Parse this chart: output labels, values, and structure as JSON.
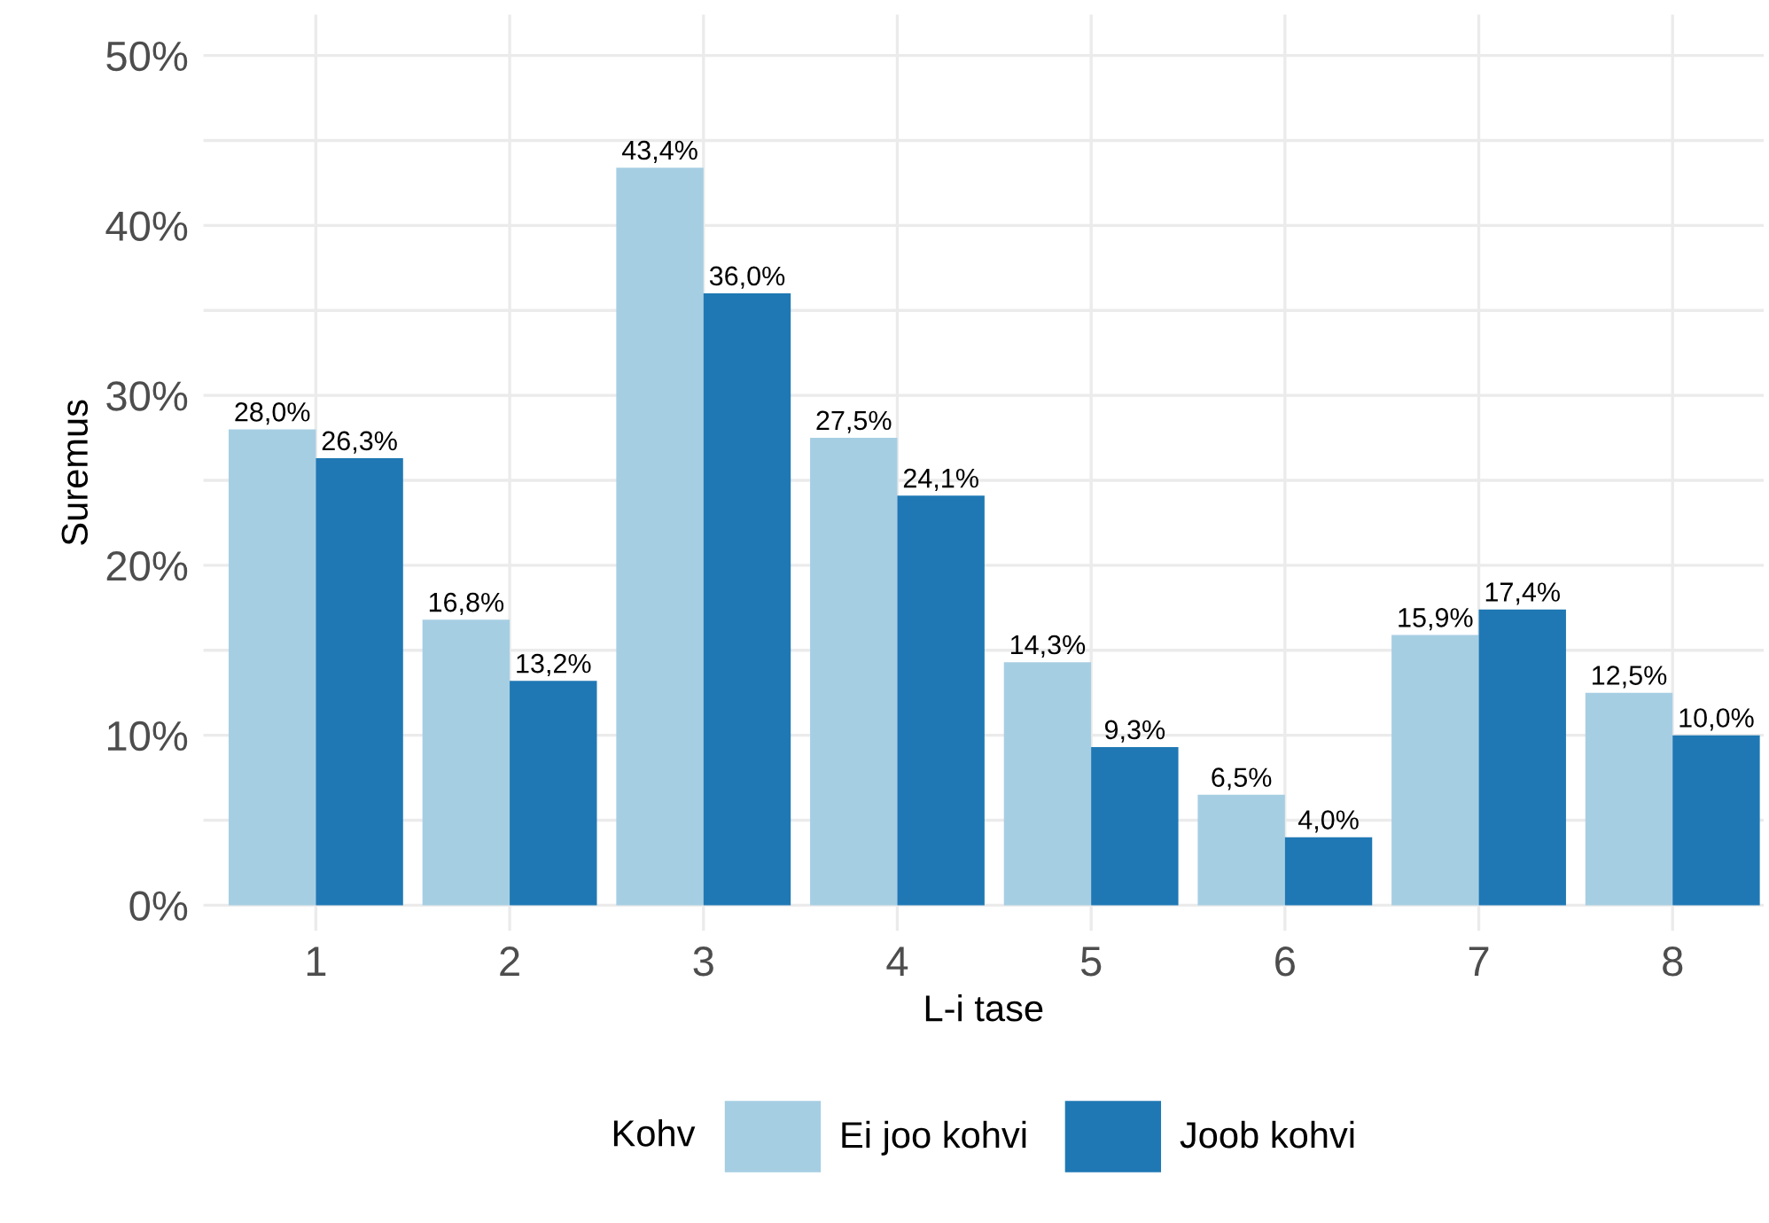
{
  "chart_data": {
    "type": "bar",
    "xlabel": "L-i tase",
    "ylabel": "Suremus",
    "legend_title": "Kohv",
    "categories": [
      "1",
      "2",
      "3",
      "4",
      "5",
      "6",
      "7",
      "8"
    ],
    "series": [
      {
        "name": "Ei joo kohvi",
        "color": "#a6cee3",
        "values": [
          28.0,
          16.8,
          43.4,
          27.5,
          14.3,
          6.5,
          15.9,
          12.5
        ],
        "value_labels": [
          "28,0%",
          "16,8%",
          "43,4%",
          "27,5%",
          "14,3%",
          "6,5%",
          "15,9%",
          "12,5%"
        ]
      },
      {
        "name": "Joob kohvi",
        "color": "#1f78b4",
        "values": [
          26.3,
          13.2,
          36.0,
          24.1,
          9.3,
          4.0,
          17.4,
          10.0
        ],
        "value_labels": [
          "26,3%",
          "13,2%",
          "36,0%",
          "24,1%",
          "9,3%",
          "4,0%",
          "17,4%",
          "10,0%"
        ]
      }
    ],
    "ylim": [
      -1.5,
      52.4
    ],
    "yticks": [
      {
        "value": 0,
        "label": "0%"
      },
      {
        "value": 5,
        "label": null
      },
      {
        "value": 10,
        "label": "10%"
      },
      {
        "value": 15,
        "label": null
      },
      {
        "value": 20,
        "label": "20%"
      },
      {
        "value": 25,
        "label": null
      },
      {
        "value": 30,
        "label": "30%"
      },
      {
        "value": 35,
        "label": null
      },
      {
        "value": 40,
        "label": "40%"
      },
      {
        "value": 45,
        "label": null
      },
      {
        "value": 50,
        "label": "50%"
      }
    ],
    "grid": true,
    "legend": "bottom"
  }
}
